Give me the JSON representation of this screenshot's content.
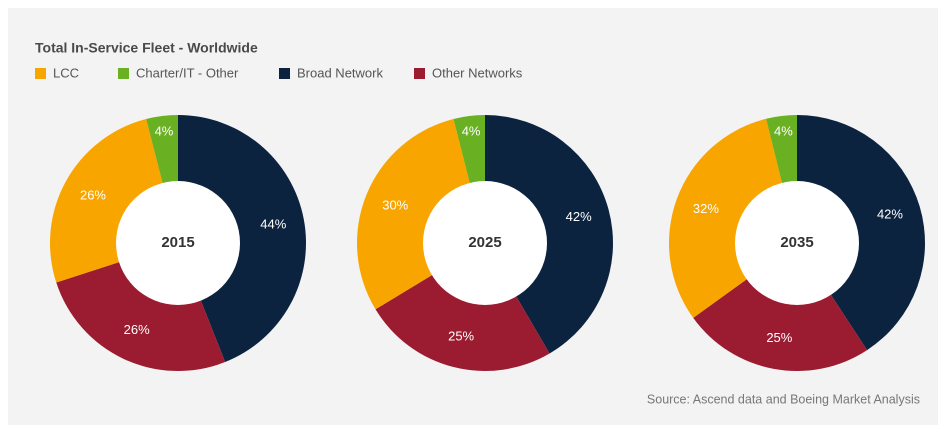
{
  "title": "Total In-Service Fleet - Worldwide",
  "categories": [
    "LCC",
    "Charter/IT - Other",
    "Broad Network",
    "Other Networks"
  ],
  "colors": [
    "#f9a500",
    "#6ab023",
    "#0c2340",
    "#9b1b30"
  ],
  "source": "Source: Ascend data and Boeing Market Analysis",
  "chart_data": [
    {
      "type": "donut",
      "center_label": "2015",
      "values": [
        26,
        4,
        44,
        26
      ],
      "value_labels": [
        "26%",
        "4%",
        "44%",
        "26%"
      ]
    },
    {
      "type": "donut",
      "center_label": "2025",
      "values": [
        30,
        4,
        42,
        25
      ],
      "value_labels": [
        "30%",
        "4%",
        "42%",
        "25%"
      ]
    },
    {
      "type": "donut",
      "center_label": "2035",
      "values": [
        32,
        4,
        42,
        25
      ],
      "value_labels": [
        "32%",
        "4%",
        "42%",
        "25%"
      ]
    }
  ]
}
